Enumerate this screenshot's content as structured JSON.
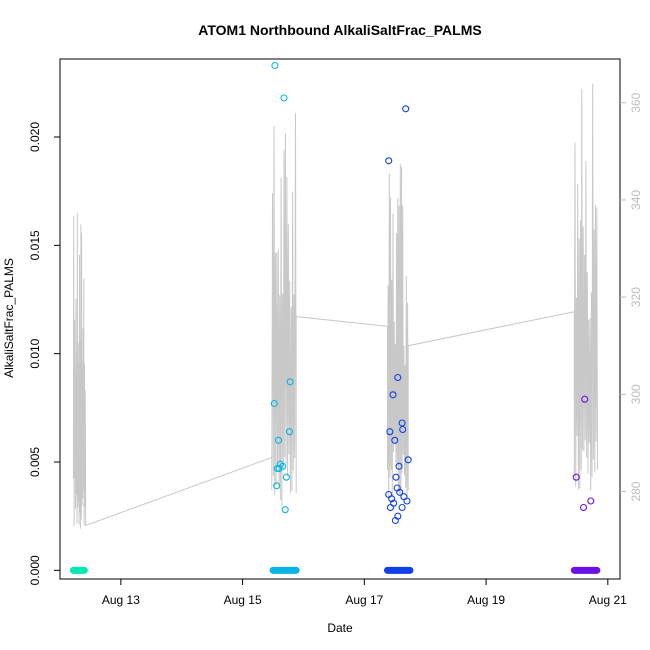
{
  "chart_data": {
    "type": "scatter",
    "title": "ATOM1 Northbound AlkaliSaltFrac_PALMS",
    "xlabel": "Date",
    "ylabel": "AlkaliSaltFrac_PALMS",
    "xlim": [
      12.0,
      21.2
    ],
    "ylim": [
      -0.0004,
      0.0236
    ],
    "y2lim": [
      262,
      369
    ],
    "yticks": [
      0.0,
      0.005,
      0.01,
      0.015,
      0.02
    ],
    "ytick_labels": [
      "0.000",
      "0.005",
      "0.010",
      "0.015",
      "0.020"
    ],
    "xticks": [
      13,
      15,
      17,
      19,
      21
    ],
    "xtick_labels": [
      "Aug 13",
      "Aug 15",
      "Aug 17",
      "Aug 19",
      "Aug 21"
    ],
    "y2ticks": [
      280,
      300,
      320,
      340,
      360
    ],
    "y2tick_labels": [
      "280",
      "300",
      "320",
      "340",
      "360"
    ],
    "grid": false,
    "legend": "none",
    "secondary_line_color": "#c8c8c8",
    "series": [
      {
        "color": "#00e8b0",
        "zero_band": [
          12.22,
          12.4
        ],
        "points": []
      },
      {
        "color": "#08b4e8",
        "zero_band": [
          15.5,
          15.88
        ],
        "points": [
          [
            15.53,
            0.0233
          ],
          [
            15.68,
            0.0218
          ],
          [
            15.52,
            0.0077
          ],
          [
            15.78,
            0.0087
          ],
          [
            15.77,
            0.0064
          ],
          [
            15.59,
            0.006
          ],
          [
            15.62,
            0.0049
          ],
          [
            15.66,
            0.0048
          ],
          [
            15.57,
            0.0047
          ],
          [
            15.6,
            0.0047
          ],
          [
            15.72,
            0.0043
          ],
          [
            15.56,
            0.0039
          ],
          [
            15.7,
            0.0028
          ]
        ]
      },
      {
        "color": "#1040e8",
        "zero_band": [
          17.38,
          17.75
        ],
        "points": [
          [
            17.68,
            0.0213
          ],
          [
            17.4,
            0.0189
          ],
          [
            17.47,
            0.0081
          ],
          [
            17.55,
            0.0089
          ],
          [
            17.62,
            0.0068
          ],
          [
            17.63,
            0.0065
          ],
          [
            17.42,
            0.0064
          ],
          [
            17.5,
            0.006
          ],
          [
            17.72,
            0.0051
          ],
          [
            17.57,
            0.0048
          ],
          [
            17.52,
            0.0043
          ],
          [
            17.54,
            0.0038
          ],
          [
            17.58,
            0.0036
          ],
          [
            17.4,
            0.0035
          ],
          [
            17.65,
            0.0034
          ],
          [
            17.45,
            0.0033
          ],
          [
            17.7,
            0.0032
          ],
          [
            17.48,
            0.0031
          ],
          [
            17.62,
            0.0029
          ],
          [
            17.43,
            0.0029
          ],
          [
            17.55,
            0.0025
          ],
          [
            17.51,
            0.0023
          ]
        ]
      },
      {
        "color": "#6a10e8",
        "zero_band": [
          20.45,
          20.82
        ],
        "points": [
          [
            20.62,
            0.0079
          ],
          [
            20.48,
            0.0043
          ],
          [
            20.72,
            0.0032
          ],
          [
            20.6,
            0.0029
          ]
        ]
      }
    ]
  }
}
